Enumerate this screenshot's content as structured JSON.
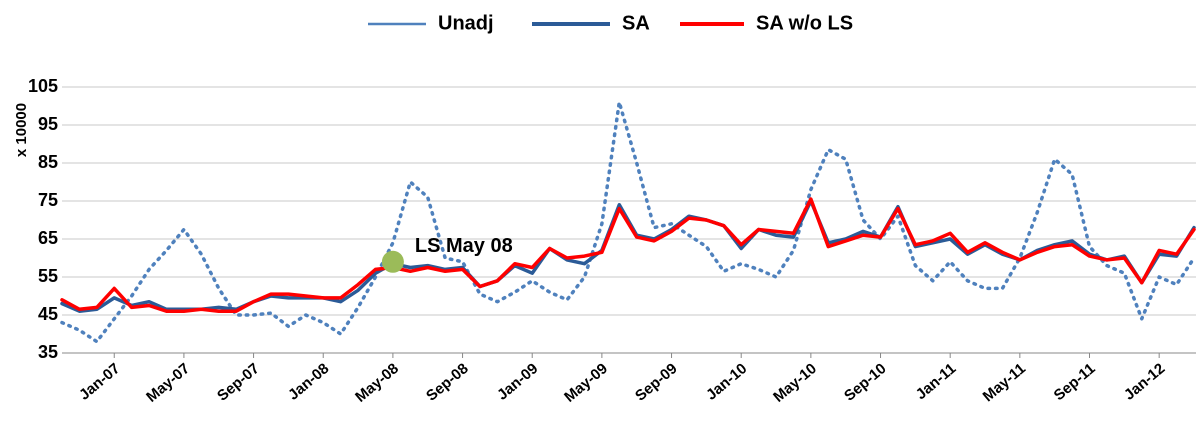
{
  "chart_data": {
    "type": "line",
    "categories": [
      null,
      null,
      null,
      "Jan-07",
      null,
      null,
      null,
      "May-07",
      null,
      null,
      null,
      "Sep-07",
      null,
      null,
      null,
      "Jan-08",
      null,
      null,
      null,
      "May-08",
      null,
      null,
      null,
      "Sep-08",
      null,
      null,
      null,
      "Jan-09",
      null,
      null,
      null,
      "May-09",
      null,
      null,
      null,
      "Sep-09",
      null,
      null,
      null,
      "Jan-10",
      null,
      null,
      null,
      "May-10",
      null,
      null,
      null,
      "Sep-10",
      null,
      null,
      null,
      "Jan-11",
      null,
      null,
      null,
      "May-11",
      null,
      null,
      null,
      "Sep-11",
      null,
      null,
      null,
      "Jan-12",
      null,
      null
    ],
    "series": [
      {
        "name": "Unadj",
        "color": "#4f81bd",
        "style": "dotted",
        "values": [
          43,
          41,
          38,
          44,
          50,
          57,
          62,
          67.5,
          61,
          52,
          45,
          45,
          45.5,
          42,
          45,
          43,
          40,
          47,
          55,
          64,
          80,
          76,
          60,
          59,
          50.5,
          48.5,
          51,
          54,
          51,
          49,
          55,
          69,
          101,
          85,
          68,
          69,
          66,
          63,
          56.5,
          58.5,
          57,
          55,
          62,
          78,
          88.5,
          86,
          70,
          65,
          71,
          58,
          54,
          59,
          54,
          52,
          52,
          60,
          72,
          86,
          82,
          63,
          58,
          56,
          44,
          55,
          53,
          60
        ]
      },
      {
        "name": "SA",
        "color": "#2b5b97",
        "style": "solid",
        "values": [
          48,
          46,
          46.5,
          49.5,
          47.5,
          48.5,
          46.5,
          46.5,
          46.5,
          47,
          46.5,
          48.5,
          50,
          49.5,
          49.5,
          49.5,
          48.5,
          51.5,
          56,
          58.5,
          57.5,
          58,
          57,
          57.5,
          52.5,
          54,
          58,
          56,
          62.5,
          59.5,
          58.5,
          62,
          74,
          66,
          65,
          67.5,
          71,
          70,
          68.5,
          62.5,
          67.5,
          66,
          65.5,
          75,
          64,
          65,
          67,
          65.5,
          73.5,
          63,
          64,
          65,
          61,
          63.5,
          61,
          59.5,
          62,
          63.5,
          64.5,
          61,
          59.5,
          60.5,
          53.5,
          61,
          60.5,
          68
        ]
      },
      {
        "name": "SA w/o LS",
        "color": "#ff0000",
        "style": "solid",
        "values": [
          49,
          46.5,
          47,
          52,
          47,
          47.5,
          46,
          46,
          46.5,
          46,
          46,
          48.5,
          50.5,
          50.5,
          50,
          49.5,
          49.5,
          53,
          57,
          57.5,
          56.5,
          57.5,
          56.5,
          57,
          52.5,
          54,
          58.5,
          57.5,
          62.5,
          60,
          60.5,
          61.5,
          73,
          65.5,
          64.5,
          67,
          70.5,
          70,
          68.5,
          63.5,
          67.5,
          67,
          66.5,
          75.5,
          63,
          64.5,
          66,
          65.5,
          73,
          63.5,
          64.5,
          66.5,
          61.5,
          64,
          61.5,
          59.5,
          61.5,
          63,
          63.5,
          60.5,
          59.5,
          60,
          53.5,
          62,
          61,
          67.5
        ]
      }
    ],
    "ylabel": "x 10000",
    "ylim": [
      35,
      105
    ],
    "yticks": [
      35,
      45,
      55,
      65,
      75,
      85,
      95,
      105
    ],
    "grid": true,
    "legend": "top",
    "annotation": {
      "text": "LS May 08",
      "x": "May-08",
      "value": 59,
      "color": "#9bbb59"
    }
  }
}
